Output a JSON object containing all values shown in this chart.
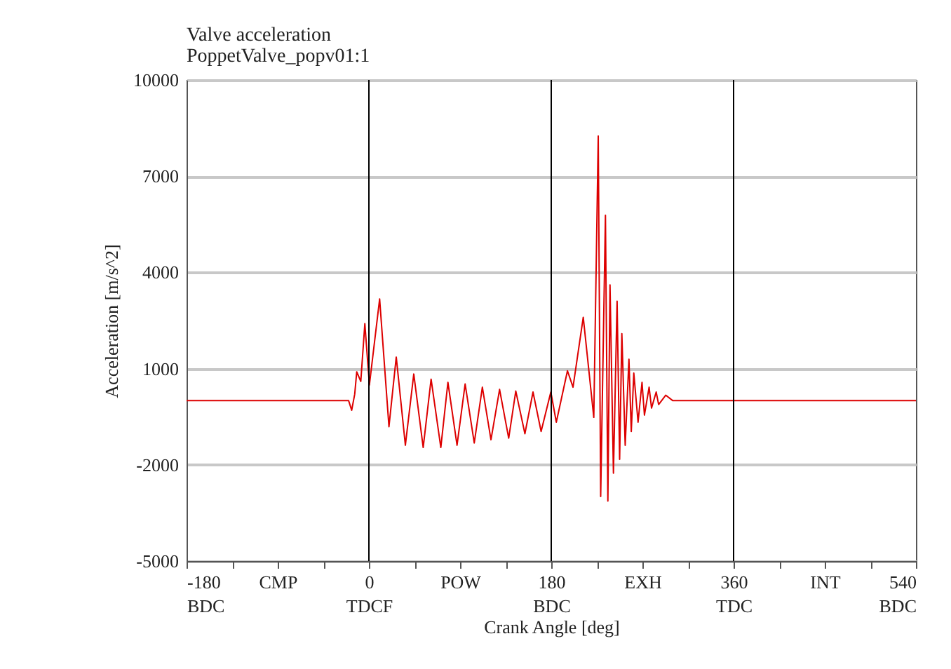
{
  "chart_data": {
    "type": "line",
    "title": "Valve acceleration",
    "subtitle": "PoppetValve_popv01:1",
    "xlabel": "Crank Angle [deg]",
    "ylabel": "Acceleration [m/s^2]",
    "x": [
      -180,
      -20,
      -17,
      -14,
      -12,
      -8,
      -4,
      0.5,
      10.6,
      19.8,
      27,
      36,
      44.3,
      53.6,
      61.4,
      71,
      78,
      87,
      95,
      104,
      112,
      120.5,
      129,
      138,
      145,
      154,
      162,
      170,
      179.6,
      185,
      196,
      201.5,
      211.6,
      222,
      226.4,
      228.8,
      233.5,
      235.9,
      238,
      241.4,
      245,
      247.5,
      249.7,
      253,
      256.7,
      259,
      261.5,
      265.7,
      269.6,
      272,
      276.6,
      279,
      283.6,
      286,
      293,
      300,
      540
    ],
    "series": [
      {
        "color": "#dd0000",
        "values": [
          0,
          0,
          -300,
          200,
          900,
          600,
          2400,
          490,
          3170,
          -810,
          1360,
          -1390,
          830,
          -1460,
          670,
          -1460,
          570,
          -1390,
          520,
          -1320,
          420,
          -1220,
          350,
          -1170,
          300,
          -1030,
          270,
          -960,
          270,
          -670,
          930,
          420,
          2600,
          -520,
          8250,
          -2990,
          5780,
          -3130,
          3610,
          -2260,
          3100,
          -1830,
          2090,
          -1390,
          1290,
          -960,
          860,
          -670,
          570,
          -450,
          420,
          -230,
          270,
          -120,
          170,
          0,
          0
        ]
      }
    ],
    "xlim": [
      -180,
      540
    ],
    "ylim": [
      -5000,
      10000
    ],
    "xticks": [
      {
        "value": -180,
        "label": "-180\nBDC"
      },
      {
        "value": -135,
        "label": null
      },
      {
        "value": -90,
        "label": "CMP"
      },
      {
        "value": -45,
        "label": null
      },
      {
        "value": 0,
        "label": "0\nTDCF"
      },
      {
        "value": 45,
        "label": null
      },
      {
        "value": 90,
        "label": "POW"
      },
      {
        "value": 135,
        "label": null
      },
      {
        "value": 180,
        "label": "180\nBDC"
      },
      {
        "value": 225,
        "label": null
      },
      {
        "value": 270,
        "label": "EXH"
      },
      {
        "value": 315,
        "label": null
      },
      {
        "value": 360,
        "label": "360\nTDC"
      },
      {
        "value": 405,
        "label": null
      },
      {
        "value": 450,
        "label": "INT"
      },
      {
        "value": 495,
        "label": null
      },
      {
        "value": 540,
        "label": "540\nBDC"
      }
    ],
    "yticks": [
      -5000,
      -2000,
      1000,
      4000,
      7000,
      10000
    ],
    "grid": "y",
    "marker": "none",
    "line_style": "solid",
    "ref_lines": [
      {
        "axis": "x",
        "value": 0,
        "color": "#000000"
      },
      {
        "axis": "x",
        "value": 180,
        "color": "#000000"
      },
      {
        "axis": "x",
        "value": 360,
        "color": "#000000"
      }
    ]
  }
}
